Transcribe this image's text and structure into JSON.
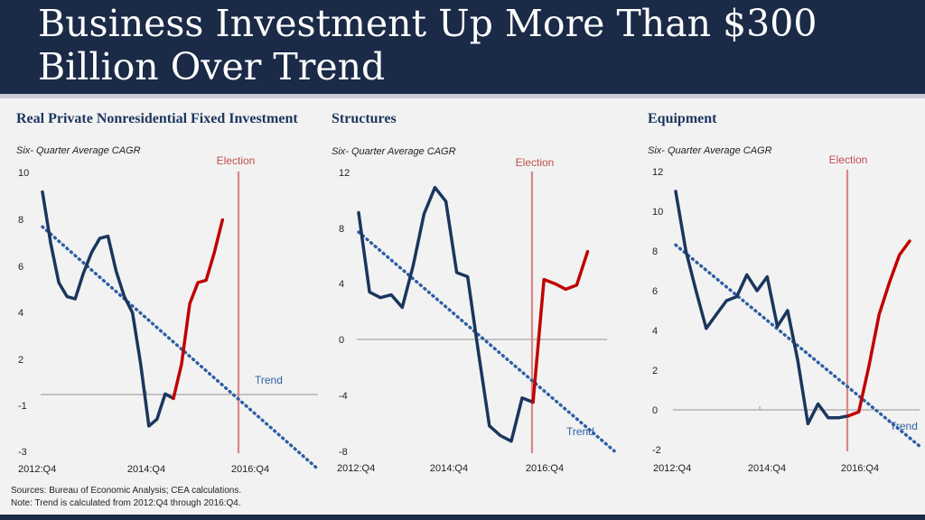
{
  "title": "Business Investment Up More Than $300 Billion Over Trend",
  "sources_line": "Sources: Bureau of Economic Analysis; CEA calculations.",
  "note_line": "Note: Trend is calculated from 2012:Q4 through 2016:Q4.",
  "colors": {
    "actual": "#1b365d",
    "post": "#c00000",
    "trend": "#2e5fa3",
    "election": "#d9878a"
  },
  "chart_data": [
    {
      "type": "line",
      "title": "Real Private Nonresidential Fixed Investment",
      "subtitle": "Six- Quarter Average CAGR",
      "yticks": [
        "10",
        "8",
        "6",
        "4",
        "2",
        "-1",
        "-3"
      ],
      "xticks": [
        "2012:Q4",
        "2014:Q4",
        "2016:Q4"
      ],
      "election_label": "Election",
      "trend_label": "Trend",
      "series": [
        {
          "values": [
            9.2,
            7.0,
            5.3,
            4.7,
            4.6,
            5.7,
            6.6,
            7.2,
            7.3,
            5.8,
            4.7,
            4.0,
            1.8,
            -0.9,
            -0.6,
            0.5,
            0.3
          ]
        },
        {
          "values": [
            0.3,
            1.8,
            4.4,
            5.3,
            5.4,
            6.6,
            8.0
          ]
        }
      ],
      "trend": [
        7.7,
        -2.7
      ]
    },
    {
      "type": "line",
      "title": "Structures",
      "subtitle": "Six- Quarter Average CAGR",
      "yticks": [
        "12",
        "8",
        "4",
        "0",
        "-4",
        "-8"
      ],
      "xticks": [
        "2012:Q4",
        "2014:Q4",
        "2016:Q4"
      ],
      "election_label": "Election",
      "trend_label": "Trend",
      "series": [
        {
          "values": [
            9.1,
            3.4,
            3.0,
            3.2,
            2.3,
            5.3,
            9.0,
            10.9,
            9.9,
            4.8,
            4.5,
            -1.0,
            -6.2,
            -6.9,
            -7.3,
            -4.2,
            -4.5
          ]
        },
        {
          "values": [
            -4.5,
            4.3,
            4.0,
            3.6,
            3.9,
            6.3
          ]
        }
      ],
      "trend": [
        7.7,
        -8.0
      ]
    },
    {
      "type": "line",
      "title": "Equipment",
      "subtitle": "Six- Quarter Average CAGR",
      "yticks": [
        "12",
        "10",
        "8",
        "6",
        "4",
        "2",
        "0",
        "-2"
      ],
      "xticks": [
        "2012:Q4",
        "2014:Q4",
        "2016:Q4"
      ],
      "election_label": "Election",
      "trend_label": "Trend",
      "series": [
        {
          "values": [
            11.0,
            8.0,
            6.0,
            4.1,
            4.8,
            5.5,
            5.7,
            6.8,
            6.0,
            6.7,
            4.2,
            5.0,
            2.5,
            -0.7,
            0.3,
            -0.4,
            -0.4,
            -0.3
          ]
        },
        {
          "values": [
            -0.3,
            -0.1,
            2.2,
            4.8,
            6.4,
            7.8,
            8.5
          ]
        }
      ],
      "trend": [
        8.3,
        -1.9
      ]
    }
  ]
}
